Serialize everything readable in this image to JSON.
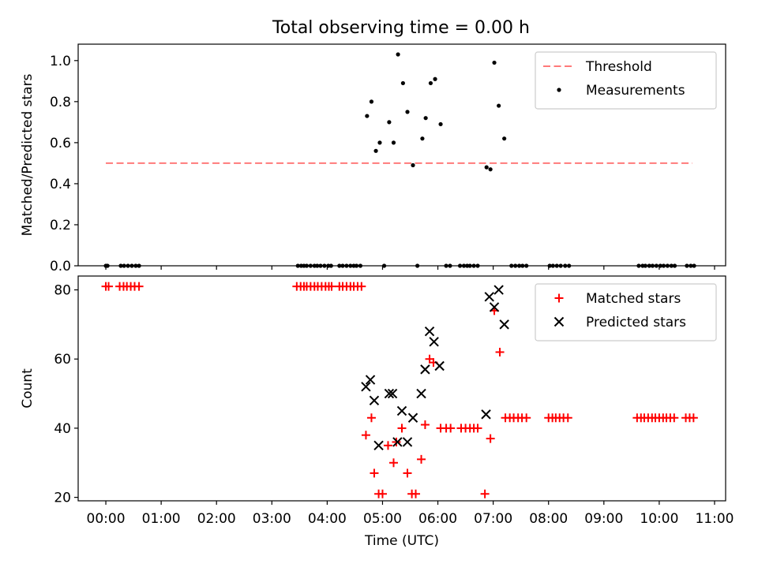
{
  "chart_data": [
    {
      "type": "scatter",
      "title": "Total observing time = 0.00 h",
      "xlabel": "",
      "ylabel": "Matched/Predicted stars",
      "xlim": [
        -0.5,
        11.2
      ],
      "ylim": [
        0,
        1.08
      ],
      "yticks": [
        0.0,
        0.2,
        0.4,
        0.6,
        0.8,
        1.0
      ],
      "ytick_labels": [
        "0.0",
        "0.2",
        "0.4",
        "0.6",
        "0.8",
        "1.0"
      ],
      "legend_position": "top-right",
      "threshold": {
        "name": "Threshold",
        "value": 0.5,
        "x_range": [
          0.0,
          10.6
        ],
        "color": "#ff7a7a"
      },
      "series": [
        {
          "name": "Measurements",
          "color": "#000000",
          "points": [
            [
              0.0,
              0
            ],
            [
              0.03,
              0
            ],
            [
              0.27,
              0
            ],
            [
              0.33,
              0
            ],
            [
              0.4,
              0
            ],
            [
              0.47,
              0
            ],
            [
              0.54,
              0
            ],
            [
              0.6,
              0
            ],
            [
              3.47,
              0
            ],
            [
              3.53,
              0
            ],
            [
              3.58,
              0
            ],
            [
              3.63,
              0
            ],
            [
              3.7,
              0
            ],
            [
              3.77,
              0
            ],
            [
              3.82,
              0
            ],
            [
              3.88,
              0
            ],
            [
              3.95,
              0
            ],
            [
              4.02,
              0
            ],
            [
              4.07,
              0
            ],
            [
              4.22,
              0
            ],
            [
              4.28,
              0
            ],
            [
              4.35,
              0
            ],
            [
              4.42,
              0
            ],
            [
              4.48,
              0
            ],
            [
              4.53,
              0
            ],
            [
              4.6,
              0
            ],
            [
              4.72,
              0.73
            ],
            [
              4.8,
              0.8
            ],
            [
              4.88,
              0.56
            ],
            [
              4.95,
              0.6
            ],
            [
              5.03,
              0
            ],
            [
              5.12,
              0.7
            ],
            [
              5.2,
              0.6
            ],
            [
              5.28,
              1.03
            ],
            [
              5.37,
              0.89
            ],
            [
              5.45,
              0.75
            ],
            [
              5.55,
              0.49
            ],
            [
              5.63,
              0
            ],
            [
              5.72,
              0.62
            ],
            [
              5.78,
              0.72
            ],
            [
              5.87,
              0.89
            ],
            [
              5.95,
              0.91
            ],
            [
              6.05,
              0.69
            ],
            [
              6.15,
              0
            ],
            [
              6.22,
              0
            ],
            [
              6.4,
              0
            ],
            [
              6.47,
              0
            ],
            [
              6.53,
              0
            ],
            [
              6.58,
              0
            ],
            [
              6.65,
              0
            ],
            [
              6.72,
              0
            ],
            [
              6.88,
              0.48
            ],
            [
              6.95,
              0.47
            ],
            [
              7.02,
              0.99
            ],
            [
              7.1,
              0.78
            ],
            [
              7.2,
              0.62
            ],
            [
              7.33,
              0
            ],
            [
              7.4,
              0
            ],
            [
              7.47,
              0
            ],
            [
              7.53,
              0
            ],
            [
              7.6,
              0
            ],
            [
              8.02,
              0
            ],
            [
              8.08,
              0
            ],
            [
              8.15,
              0
            ],
            [
              8.22,
              0
            ],
            [
              8.3,
              0
            ],
            [
              8.37,
              0
            ],
            [
              9.63,
              0
            ],
            [
              9.7,
              0
            ],
            [
              9.75,
              0
            ],
            [
              9.82,
              0
            ],
            [
              9.88,
              0
            ],
            [
              9.95,
              0
            ],
            [
              10.02,
              0
            ],
            [
              10.08,
              0
            ],
            [
              10.15,
              0
            ],
            [
              10.22,
              0
            ],
            [
              10.28,
              0
            ],
            [
              10.5,
              0
            ],
            [
              10.57,
              0
            ],
            [
              10.63,
              0
            ]
          ]
        }
      ]
    },
    {
      "type": "scatter",
      "title": "",
      "xlabel": "Time (UTC)",
      "ylabel": "Count",
      "xlim": [
        -0.5,
        11.2
      ],
      "ylim": [
        19,
        84
      ],
      "yticks": [
        20,
        40,
        60,
        80
      ],
      "ytick_labels": [
        "20",
        "40",
        "60",
        "80"
      ],
      "xticks": [
        0,
        1,
        2,
        3,
        4,
        5,
        6,
        7,
        8,
        9,
        10,
        11
      ],
      "xtick_labels": [
        "00:00",
        "01:00",
        "02:00",
        "03:00",
        "04:00",
        "05:00",
        "06:00",
        "07:00",
        "08:00",
        "09:00",
        "10:00",
        "11:00"
      ],
      "legend_position": "top-right",
      "series": [
        {
          "name": "Matched stars",
          "marker": "plus",
          "color": "#ff0000",
          "points": [
            [
              0.0,
              81
            ],
            [
              0.05,
              81
            ],
            [
              0.25,
              81
            ],
            [
              0.32,
              81
            ],
            [
              0.38,
              81
            ],
            [
              0.45,
              81
            ],
            [
              0.52,
              81
            ],
            [
              0.6,
              81
            ],
            [
              3.45,
              81
            ],
            [
              3.52,
              81
            ],
            [
              3.58,
              81
            ],
            [
              3.63,
              81
            ],
            [
              3.7,
              81
            ],
            [
              3.77,
              81
            ],
            [
              3.83,
              81
            ],
            [
              3.9,
              81
            ],
            [
              3.97,
              81
            ],
            [
              4.03,
              81
            ],
            [
              4.08,
              81
            ],
            [
              4.22,
              81
            ],
            [
              4.28,
              81
            ],
            [
              4.35,
              81
            ],
            [
              4.42,
              81
            ],
            [
              4.48,
              81
            ],
            [
              4.55,
              81
            ],
            [
              4.62,
              81
            ],
            [
              4.7,
              38
            ],
            [
              4.8,
              43
            ],
            [
              4.85,
              27
            ],
            [
              4.93,
              21
            ],
            [
              5.0,
              21
            ],
            [
              5.1,
              35
            ],
            [
              5.2,
              30
            ],
            [
              5.25,
              36
            ],
            [
              5.35,
              40
            ],
            [
              5.45,
              27
            ],
            [
              5.53,
              21
            ],
            [
              5.6,
              21
            ],
            [
              5.7,
              31
            ],
            [
              5.77,
              41
            ],
            [
              5.85,
              60
            ],
            [
              5.92,
              59
            ],
            [
              6.05,
              40
            ],
            [
              6.15,
              40
            ],
            [
              6.23,
              40
            ],
            [
              6.42,
              40
            ],
            [
              6.5,
              40
            ],
            [
              6.58,
              40
            ],
            [
              6.65,
              40
            ],
            [
              6.72,
              40
            ],
            [
              6.85,
              21
            ],
            [
              6.95,
              37
            ],
            [
              7.02,
              74
            ],
            [
              7.12,
              62
            ],
            [
              7.22,
              43
            ],
            [
              7.3,
              43
            ],
            [
              7.37,
              43
            ],
            [
              7.45,
              43
            ],
            [
              7.52,
              43
            ],
            [
              7.6,
              43
            ],
            [
              8.0,
              43
            ],
            [
              8.07,
              43
            ],
            [
              8.13,
              43
            ],
            [
              8.2,
              43
            ],
            [
              8.27,
              43
            ],
            [
              8.35,
              43
            ],
            [
              9.6,
              43
            ],
            [
              9.67,
              43
            ],
            [
              9.73,
              43
            ],
            [
              9.8,
              43
            ],
            [
              9.87,
              43
            ],
            [
              9.93,
              43
            ],
            [
              10.0,
              43
            ],
            [
              10.07,
              43
            ],
            [
              10.13,
              43
            ],
            [
              10.2,
              43
            ],
            [
              10.27,
              43
            ],
            [
              10.48,
              43
            ],
            [
              10.55,
              43
            ],
            [
              10.62,
              43
            ]
          ]
        },
        {
          "name": "Predicted stars",
          "marker": "x",
          "color": "#000000",
          "points": [
            [
              4.7,
              52
            ],
            [
              4.78,
              54
            ],
            [
              4.85,
              48
            ],
            [
              4.93,
              35
            ],
            [
              5.12,
              50
            ],
            [
              5.18,
              50
            ],
            [
              5.27,
              36
            ],
            [
              5.35,
              45
            ],
            [
              5.45,
              36
            ],
            [
              5.55,
              43
            ],
            [
              5.7,
              50
            ],
            [
              5.77,
              57
            ],
            [
              5.85,
              68
            ],
            [
              5.93,
              65
            ],
            [
              6.03,
              58
            ],
            [
              6.87,
              44
            ],
            [
              6.93,
              78
            ],
            [
              7.02,
              75
            ],
            [
              7.1,
              80
            ],
            [
              7.2,
              70
            ]
          ]
        }
      ]
    }
  ]
}
